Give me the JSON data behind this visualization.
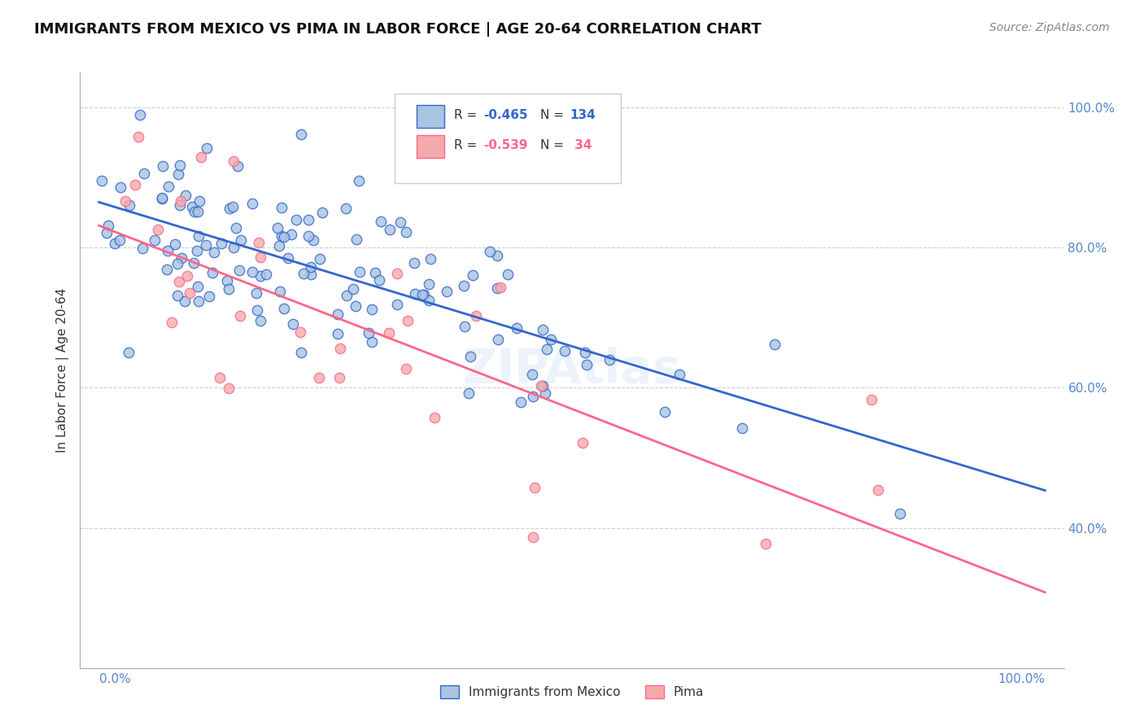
{
  "title": "IMMIGRANTS FROM MEXICO VS PIMA IN LABOR FORCE | AGE 20-64 CORRELATION CHART",
  "source": "Source: ZipAtlas.com",
  "ylabel": "In Labor Force | Age 20-64",
  "xlim": [
    0.0,
    1.0
  ],
  "ylim": [
    0.2,
    1.05
  ],
  "blue_color": "#A8C4E0",
  "pink_color": "#F4AAAA",
  "line_blue": "#3366CC",
  "line_pink": "#FF6688",
  "watermark": "ZIPAtlas",
  "r_blue": "-0.465",
  "n_blue": "134",
  "r_pink": "-0.539",
  "n_pink": " 34"
}
